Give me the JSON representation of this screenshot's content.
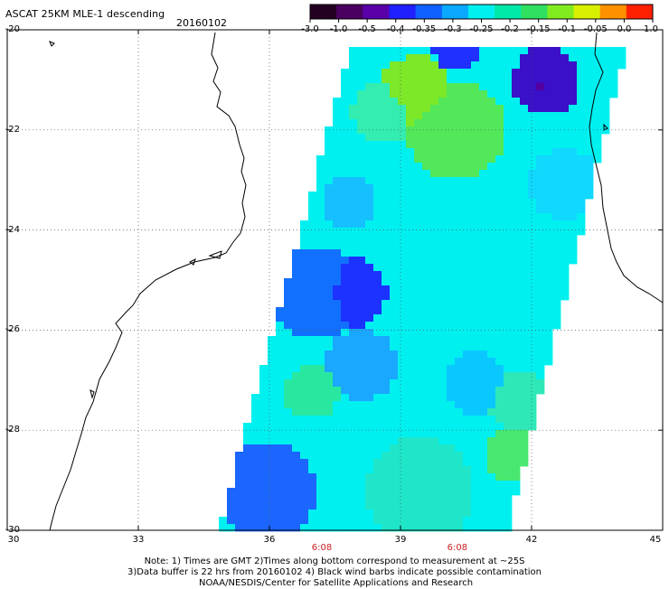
{
  "header": {
    "title": "ASCAT 25KM MLE-1 descending",
    "date": "20160102"
  },
  "colorbar": {
    "labels": [
      "-3.0",
      "-1.0",
      "-0.5",
      "-0.4",
      "-0.35",
      "-0.3",
      "-0.25",
      "-0.2",
      "-0.15",
      "-0.1",
      "-0.05",
      "0.0",
      "1.0"
    ],
    "colors": [
      "#230022",
      "#4a0060",
      "#5a00a8",
      "#2020ff",
      "#1060ff",
      "#0aa8ff",
      "#00f0f0",
      "#00e8a8",
      "#30e060",
      "#80ec20",
      "#d8f000",
      "#ff9000",
      "#ff2000"
    ]
  },
  "map": {
    "y_axis_labels": [
      "-20",
      "-22",
      "-24",
      "-26",
      "-28",
      "-30"
    ],
    "x_axis_labels": [
      "30",
      "33",
      "36",
      "39",
      "42",
      "45"
    ],
    "lat_range": [
      -30,
      -20
    ],
    "lon_range": [
      30,
      45
    ],
    "times": [
      {
        "text": "6:08",
        "lon": 37.2
      },
      {
        "text": "6:08",
        "lon": 40.3
      }
    ]
  },
  "notes": {
    "line1": "Note: 1) Times are GMT 2)Times along bottom correspond to measurement at ~25S",
    "line2": "3)Data buffer is 22 hrs from 20160102 4) Black wind barbs indicate possible contamination",
    "line3": "NOAA/NESDIS/Center for Satellite Applications and Research"
  }
}
